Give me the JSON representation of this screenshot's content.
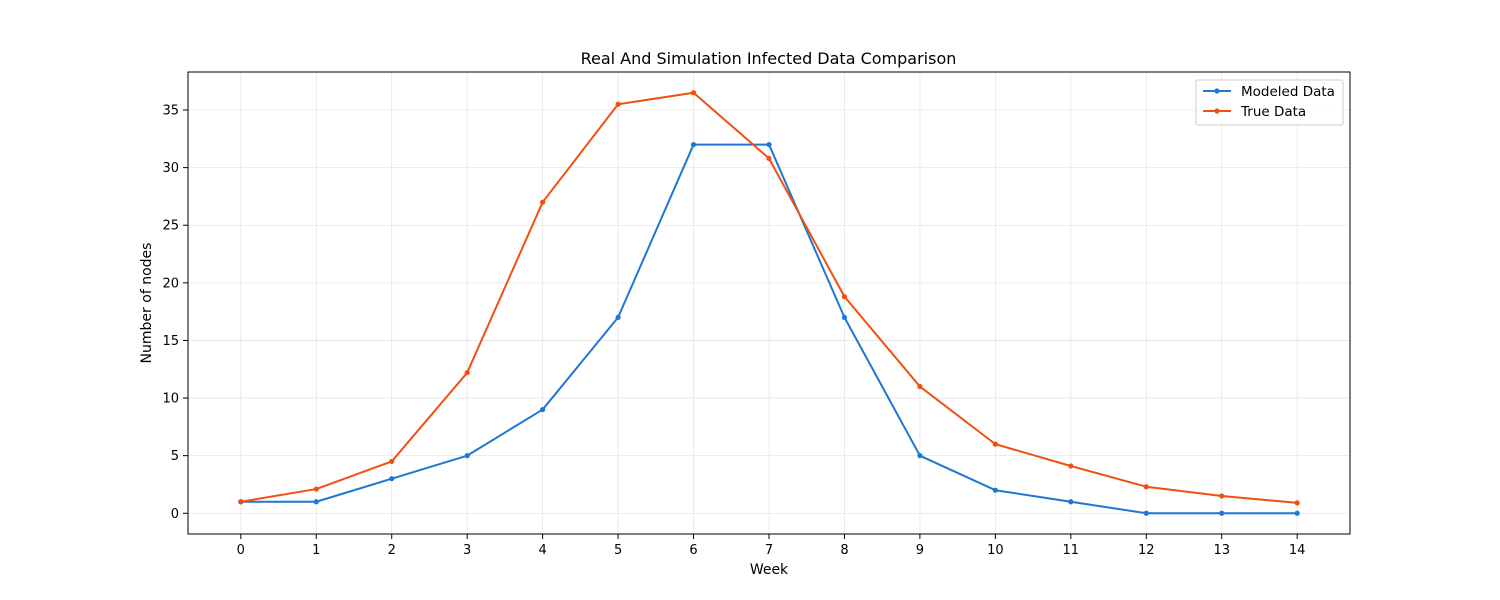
{
  "chart_data": {
    "type": "line",
    "title": "Real And Simulation Infected Data Comparison",
    "xlabel": "Week",
    "ylabel": "Number of nodes",
    "x": [
      0,
      1,
      2,
      3,
      4,
      5,
      6,
      7,
      8,
      9,
      10,
      11,
      12,
      13,
      14
    ],
    "xlim": [
      -0.7,
      14.7
    ],
    "ylim": [
      -1.8,
      38.3
    ],
    "xticks": [
      0,
      1,
      2,
      3,
      4,
      5,
      6,
      7,
      8,
      9,
      10,
      11,
      12,
      13,
      14
    ],
    "yticks": [
      0,
      5,
      10,
      15,
      20,
      25,
      30,
      35
    ],
    "grid": true,
    "legend_position": "top-right",
    "series": [
      {
        "name": "Modeled Data",
        "color": "#1f77d4",
        "values": [
          1,
          1,
          3,
          5,
          9,
          17,
          32,
          32,
          17,
          5,
          2,
          1,
          0,
          0,
          0
        ]
      },
      {
        "name": "True Data",
        "color": "#f05010",
        "values": [
          1.0,
          2.1,
          4.5,
          12.2,
          27.0,
          35.5,
          36.5,
          30.8,
          18.8,
          11.0,
          6.0,
          4.1,
          2.3,
          1.5,
          0.9
        ]
      }
    ]
  }
}
